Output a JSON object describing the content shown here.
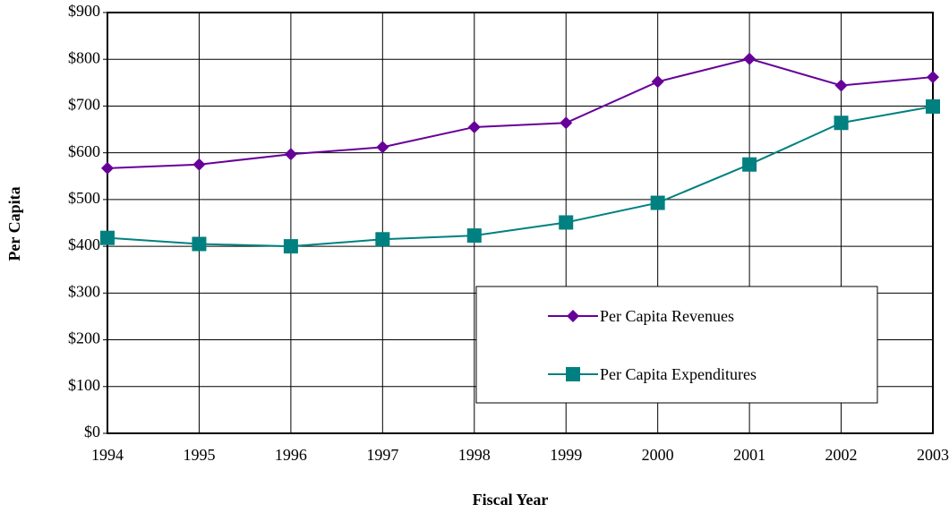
{
  "chart_data": {
    "type": "line",
    "x_label": "Fiscal Year",
    "y_label": "Per Capita",
    "categories": [
      "1994",
      "1995",
      "1996",
      "1997",
      "1998",
      "1999",
      "2000",
      "2001",
      "2002",
      "2003"
    ],
    "series": [
      {
        "name": "Per Capita Revenues",
        "color": "#660099",
        "marker": "diamond",
        "values": [
          567,
          575,
          597,
          612,
          655,
          664,
          752,
          801,
          744,
          762
        ]
      },
      {
        "name": "Per Capita Expenditures",
        "color": "#008080",
        "marker": "square",
        "values": [
          418,
          405,
          400,
          415,
          423,
          451,
          493,
          575,
          664,
          699
        ]
      }
    ],
    "ylim": [
      0,
      900
    ],
    "yticks": [
      {
        "value": 0,
        "label": "$0"
      },
      {
        "value": 100,
        "label": "$100"
      },
      {
        "value": 200,
        "label": "$200"
      },
      {
        "value": 300,
        "label": "$300"
      },
      {
        "value": 400,
        "label": "$400"
      },
      {
        "value": 500,
        "label": "$500"
      },
      {
        "value": 600,
        "label": "$600"
      },
      {
        "value": 700,
        "label": "$700"
      },
      {
        "value": 800,
        "label": "$800"
      },
      {
        "value": 900,
        "label": "$900"
      }
    ],
    "grid": true,
    "legend": "lower right"
  }
}
